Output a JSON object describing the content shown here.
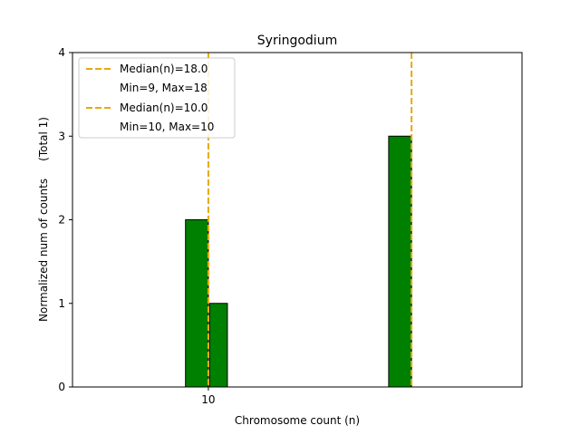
{
  "chart_data": {
    "type": "bar",
    "title": "Syringodium",
    "xlabel": "Chromosome count (n)",
    "ylabel": "Normalized num of counts     (Total 1)",
    "xlim": [
      4.65,
      22.35
    ],
    "ylim": [
      0,
      4
    ],
    "x_ticks": [
      {
        "value": 10,
        "label": "10"
      }
    ],
    "y_ticks": [
      {
        "value": 0,
        "label": "0"
      },
      {
        "value": 1,
        "label": "1"
      },
      {
        "value": 2,
        "label": "2"
      },
      {
        "value": 3,
        "label": "3"
      },
      {
        "value": 4,
        "label": "4"
      }
    ],
    "bars": [
      {
        "x_start": 9.1,
        "x_end": 10.0,
        "value": 2
      },
      {
        "x_start": 10.05,
        "x_end": 10.75,
        "value": 1
      },
      {
        "x_start": 17.1,
        "x_end": 18.0,
        "value": 3
      }
    ],
    "bar_color": "#008000",
    "median_lines": [
      {
        "x": 18.0,
        "label": "Median(n)=18.0",
        "range_label": "Min=9, Max=18"
      },
      {
        "x": 10.0,
        "label": "Median(n)=10.0",
        "range_label": "Min=10, Max=10"
      }
    ],
    "median_color": "#e6a90f",
    "legend_position": "top-left"
  }
}
